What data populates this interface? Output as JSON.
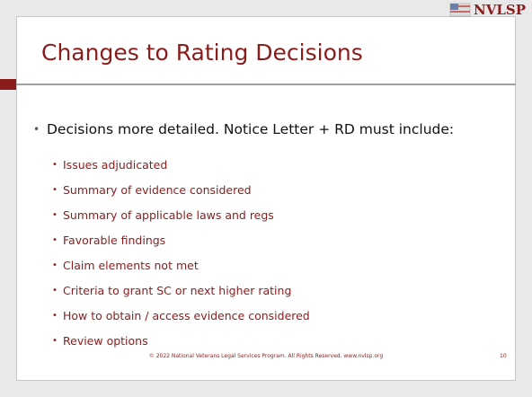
{
  "logo": "NVLSP",
  "title": "Changes to Rating Decisions",
  "main_bullet": "Decisions more detailed. Notice Letter + RD must include:",
  "sub_bullets": [
    "Issues adjudicated",
    "Summary of evidence considered",
    "Summary of applicable laws and regs",
    "Favorable findings",
    "Claim elements not met",
    "Criteria to grant SC or next higher rating",
    "How to obtain / access evidence considered",
    "Review options"
  ],
  "footer": "© 2022 National Veterans Legal Services Program. All Rights Reserved. www.nvlsp.org",
  "page_number": "10"
}
